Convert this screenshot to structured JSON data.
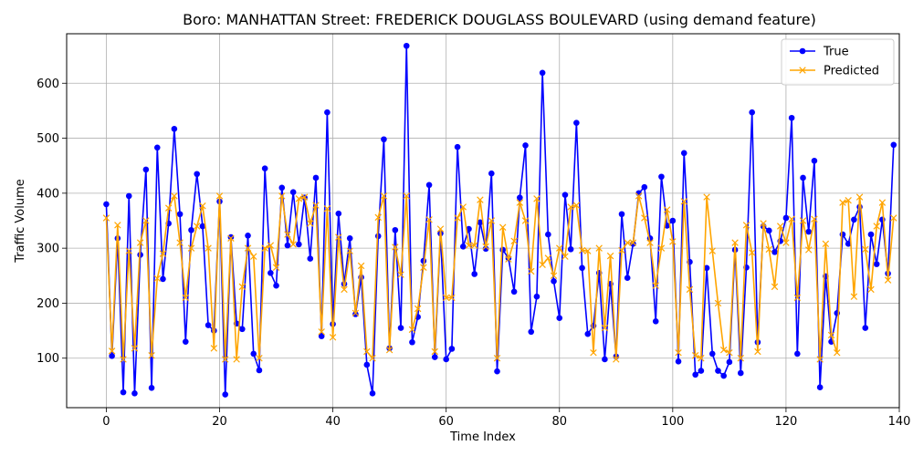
{
  "chart_data": {
    "type": "line",
    "title": "Boro: MANHATTAN Street: FREDERICK DOUGLASS BOULEVARD (using demand feature)",
    "xlabel": "Time Index",
    "ylabel": "Traffic Volume",
    "xlim": [
      -7,
      140
    ],
    "ylim": [
      10,
      690
    ],
    "xticks": [
      0,
      20,
      40,
      60,
      80,
      100,
      120,
      140
    ],
    "yticks": [
      100,
      200,
      300,
      400,
      500,
      600
    ],
    "grid": true,
    "legend_position": "top-right",
    "series": [
      {
        "name": "True",
        "color": "#0000ff",
        "marker": "circle",
        "values": [
          380,
          104,
          318,
          38,
          395,
          36,
          288,
          443,
          46,
          483,
          244,
          345,
          517,
          362,
          130,
          333,
          435,
          340,
          160,
          150,
          385,
          34,
          320,
          163,
          153,
          323,
          108,
          78,
          445,
          255,
          232,
          410,
          305,
          402,
          307,
          392,
          281,
          428,
          140,
          547,
          162,
          363,
          235,
          318,
          180,
          247,
          88,
          36,
          322,
          498,
          118,
          333,
          155,
          668,
          129,
          175,
          277,
          415,
          102,
          327,
          98,
          117,
          484,
          303,
          335,
          253,
          347,
          299,
          436,
          76,
          297,
          282,
          221,
          392,
          487,
          148,
          212,
          619,
          325,
          240,
          173,
          397,
          298,
          528,
          264,
          144,
          159,
          255,
          98,
          235,
          103,
          362,
          246,
          308,
          400,
          411,
          318,
          167,
          430,
          341,
          350,
          94,
          473,
          275,
          70,
          77,
          264,
          108,
          77,
          68,
          93,
          297,
          73,
          265,
          547,
          129,
          340,
          332,
          293,
          313,
          355,
          537,
          108,
          428,
          330,
          459,
          47,
          249,
          130,
          182,
          325,
          308,
          352,
          375,
          155,
          325,
          271,
          352,
          254,
          488
        ]
      },
      {
        "name": "Predicted",
        "color": "#ffa500",
        "marker": "x",
        "values": [
          355,
          113,
          342,
          98,
          295,
          118,
          310,
          350,
          105,
          245,
          290,
          373,
          395,
          310,
          210,
          300,
          340,
          377,
          300,
          118,
          395,
          98,
          318,
          98,
          230,
          300,
          285,
          100,
          300,
          305,
          265,
          395,
          325,
          307,
          390,
          393,
          345,
          378,
          148,
          372,
          138,
          320,
          225,
          295,
          182,
          268,
          112,
          100,
          356,
          395,
          115,
          302,
          252,
          395,
          152,
          190,
          265,
          352,
          112,
          335,
          210,
          210,
          355,
          375,
          305,
          305,
          388,
          303,
          350,
          100,
          338,
          280,
          313,
          383,
          350,
          258,
          390,
          270,
          282,
          250,
          300,
          285,
          375,
          378,
          296,
          295,
          110,
          300,
          155,
          286,
          98,
          296,
          310,
          310,
          395,
          355,
          310,
          232,
          300,
          370,
          312,
          110,
          385,
          225,
          105,
          100,
          393,
          295,
          200,
          115,
          110,
          310,
          100,
          342,
          292,
          112,
          345,
          298,
          230,
          340,
          310,
          353,
          210,
          350,
          297,
          353,
          98,
          308,
          142,
          110,
          383,
          387,
          212,
          393,
          298,
          225,
          340,
          383,
          242,
          355
        ]
      }
    ]
  }
}
